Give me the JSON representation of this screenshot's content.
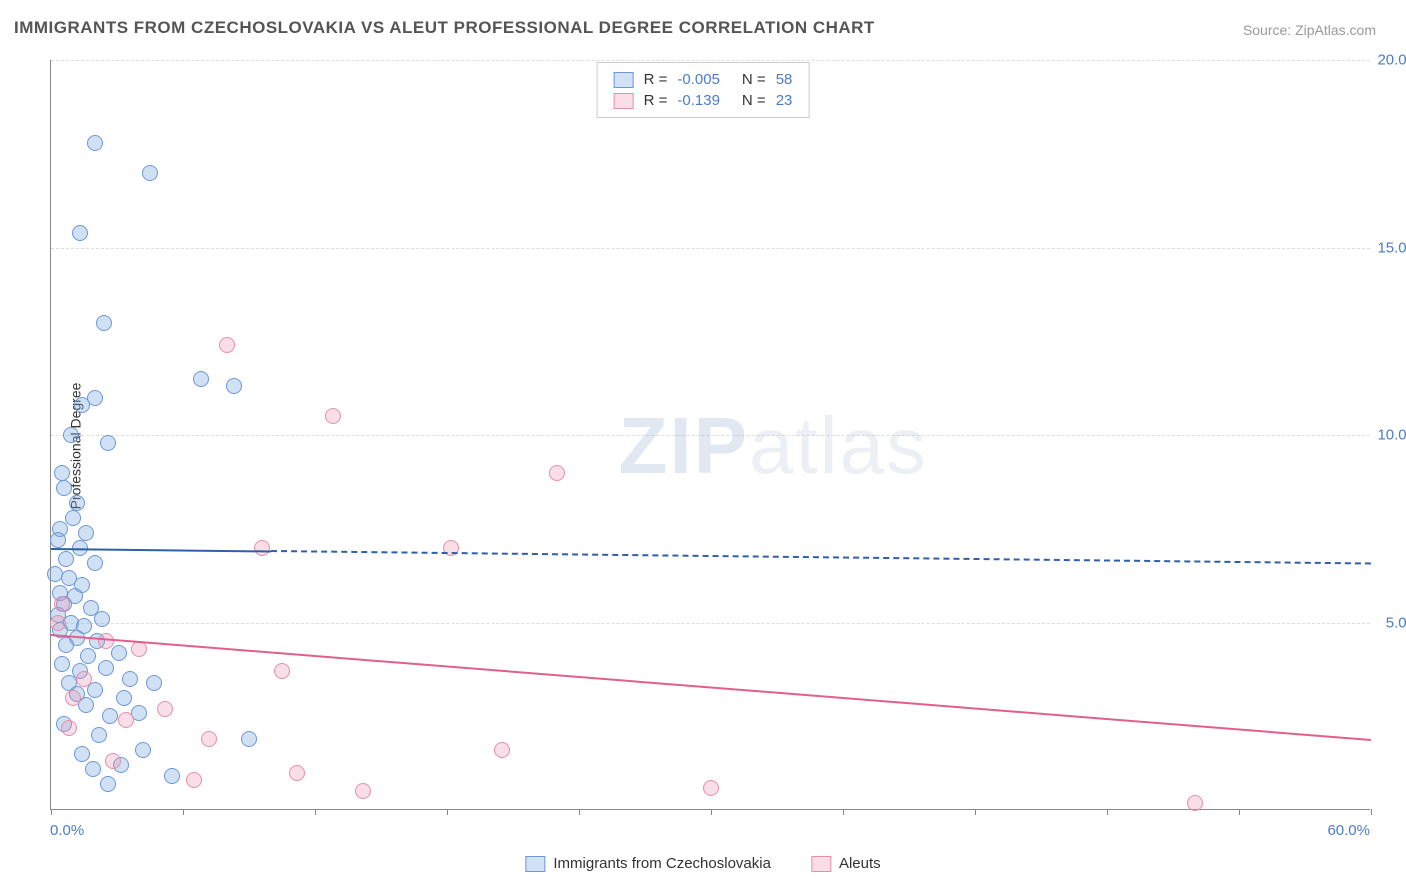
{
  "title": "IMMIGRANTS FROM CZECHOSLOVAKIA VS ALEUT PROFESSIONAL DEGREE CORRELATION CHART",
  "source": "Source: ZipAtlas.com",
  "ylabel": "Professional Degree",
  "watermark": {
    "bold": "ZIP",
    "light": "atlas"
  },
  "chart": {
    "type": "scatter",
    "background_color": "#ffffff",
    "grid_color": "#dddddd",
    "axis_color": "#888888",
    "xlim": [
      0,
      60
    ],
    "ylim": [
      0,
      20
    ],
    "xtick_label_min": "0.0%",
    "xtick_label_max": "60.0%",
    "ytick_labels": [
      "5.0%",
      "10.0%",
      "15.0%",
      "20.0%"
    ],
    "ytick_positions": [
      5,
      10,
      15,
      20
    ],
    "xtick_marks": [
      0,
      6,
      12,
      18,
      24,
      30,
      36,
      42,
      48,
      54,
      60
    ],
    "label_color": "#4a7ec4",
    "label_fontsize": 15,
    "marker_radius": 8,
    "marker_stroke_width": 1.5,
    "series": [
      {
        "name": "Immigrants from Czechoslovakia",
        "fill": "rgba(120,165,225,0.35)",
        "stroke": "#6c98d4",
        "R": "-0.005",
        "N": "58",
        "regression": {
          "y_start": 7.0,
          "y_end": 6.6,
          "solid_until_x": 10,
          "color": "#2f5fa8"
        },
        "points": [
          [
            2.0,
            17.8
          ],
          [
            4.5,
            17.0
          ],
          [
            1.3,
            15.4
          ],
          [
            2.4,
            13.0
          ],
          [
            6.8,
            11.5
          ],
          [
            8.3,
            11.3
          ],
          [
            1.4,
            10.8
          ],
          [
            2.0,
            11.0
          ],
          [
            0.9,
            10.0
          ],
          [
            2.6,
            9.8
          ],
          [
            0.5,
            9.0
          ],
          [
            0.6,
            8.6
          ],
          [
            1.2,
            8.2
          ],
          [
            1.0,
            7.8
          ],
          [
            0.4,
            7.5
          ],
          [
            1.6,
            7.4
          ],
          [
            0.3,
            7.2
          ],
          [
            1.3,
            7.0
          ],
          [
            0.7,
            6.7
          ],
          [
            2.0,
            6.6
          ],
          [
            0.2,
            6.3
          ],
          [
            0.8,
            6.2
          ],
          [
            1.4,
            6.0
          ],
          [
            0.4,
            5.8
          ],
          [
            1.1,
            5.7
          ],
          [
            0.6,
            5.5
          ],
          [
            1.8,
            5.4
          ],
          [
            0.3,
            5.2
          ],
          [
            2.3,
            5.1
          ],
          [
            0.9,
            5.0
          ],
          [
            1.5,
            4.9
          ],
          [
            0.4,
            4.8
          ],
          [
            1.2,
            4.6
          ],
          [
            2.1,
            4.5
          ],
          [
            0.7,
            4.4
          ],
          [
            3.1,
            4.2
          ],
          [
            1.7,
            4.1
          ],
          [
            0.5,
            3.9
          ],
          [
            2.5,
            3.8
          ],
          [
            1.3,
            3.7
          ],
          [
            3.6,
            3.5
          ],
          [
            0.8,
            3.4
          ],
          [
            4.7,
            3.4
          ],
          [
            2.0,
            3.2
          ],
          [
            1.2,
            3.1
          ],
          [
            3.3,
            3.0
          ],
          [
            1.6,
            2.8
          ],
          [
            4.0,
            2.6
          ],
          [
            2.7,
            2.5
          ],
          [
            0.6,
            2.3
          ],
          [
            9.0,
            1.9
          ],
          [
            2.2,
            2.0
          ],
          [
            4.2,
            1.6
          ],
          [
            1.4,
            1.5
          ],
          [
            3.2,
            1.2
          ],
          [
            1.9,
            1.1
          ],
          [
            5.5,
            0.9
          ],
          [
            2.6,
            0.7
          ]
        ]
      },
      {
        "name": "Aleuts",
        "fill": "rgba(235,145,175,0.30)",
        "stroke": "#e48fab",
        "R": "-0.139",
        "N": "23",
        "regression": {
          "y_start": 4.7,
          "y_end": 1.9,
          "solid_until_x": 60,
          "color": "#e15f8c"
        },
        "points": [
          [
            8.0,
            12.4
          ],
          [
            12.8,
            10.5
          ],
          [
            23.0,
            9.0
          ],
          [
            18.2,
            7.0
          ],
          [
            9.6,
            7.0
          ],
          [
            0.5,
            5.5
          ],
          [
            0.3,
            5.0
          ],
          [
            2.5,
            4.5
          ],
          [
            4.0,
            4.3
          ],
          [
            10.5,
            3.7
          ],
          [
            1.5,
            3.5
          ],
          [
            5.2,
            2.7
          ],
          [
            3.4,
            2.4
          ],
          [
            7.2,
            1.9
          ],
          [
            11.2,
            1.0
          ],
          [
            6.5,
            0.8
          ],
          [
            20.5,
            1.6
          ],
          [
            14.2,
            0.5
          ],
          [
            30.0,
            0.6
          ],
          [
            52.0,
            0.2
          ],
          [
            1.0,
            3.0
          ],
          [
            0.8,
            2.2
          ],
          [
            2.8,
            1.3
          ]
        ]
      }
    ]
  },
  "legend_top_label_R": "R =",
  "legend_top_label_N": "N ="
}
